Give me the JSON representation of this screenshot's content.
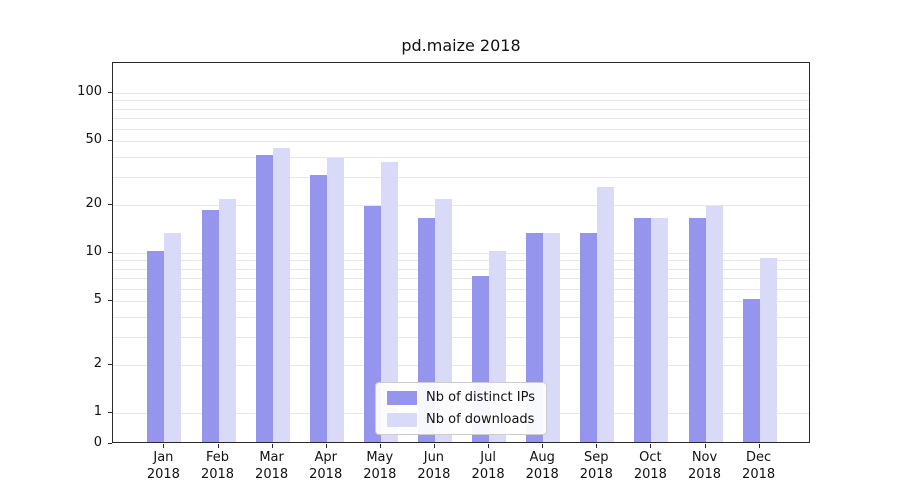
{
  "chart_data": {
    "type": "bar",
    "title": "pd.maize 2018",
    "categories": [
      "Jan 2018",
      "Feb 2018",
      "Mar 2018",
      "Apr 2018",
      "May 2018",
      "Jun 2018",
      "Jul 2018",
      "Aug 2018",
      "Sep 2018",
      "Oct 2018",
      "Nov 2018",
      "Dec 2018"
    ],
    "series": [
      {
        "name": "Nb of distinct IPs",
        "color": "#9595ee",
        "values": [
          10,
          18,
          40,
          30,
          19,
          16,
          7,
          13,
          13,
          16,
          16,
          5
        ]
      },
      {
        "name": "Nb of downloads",
        "color": "#d9d9f8",
        "values": [
          13,
          21,
          44,
          38,
          36,
          21,
          10,
          13,
          25,
          16,
          19,
          9
        ]
      }
    ],
    "xlabel": "",
    "ylabel": "",
    "yscale": "log",
    "yticks": [
      0,
      1,
      2,
      5,
      10,
      20,
      50,
      100
    ],
    "grid": true,
    "legend_position": "lower center"
  },
  "colors": {
    "background": "#ffffff",
    "axis": "#2a2a2a",
    "gridline": "#e8e8e8",
    "series_distinct_ips": "#9595ee",
    "series_downloads": "#d9d9f8"
  }
}
